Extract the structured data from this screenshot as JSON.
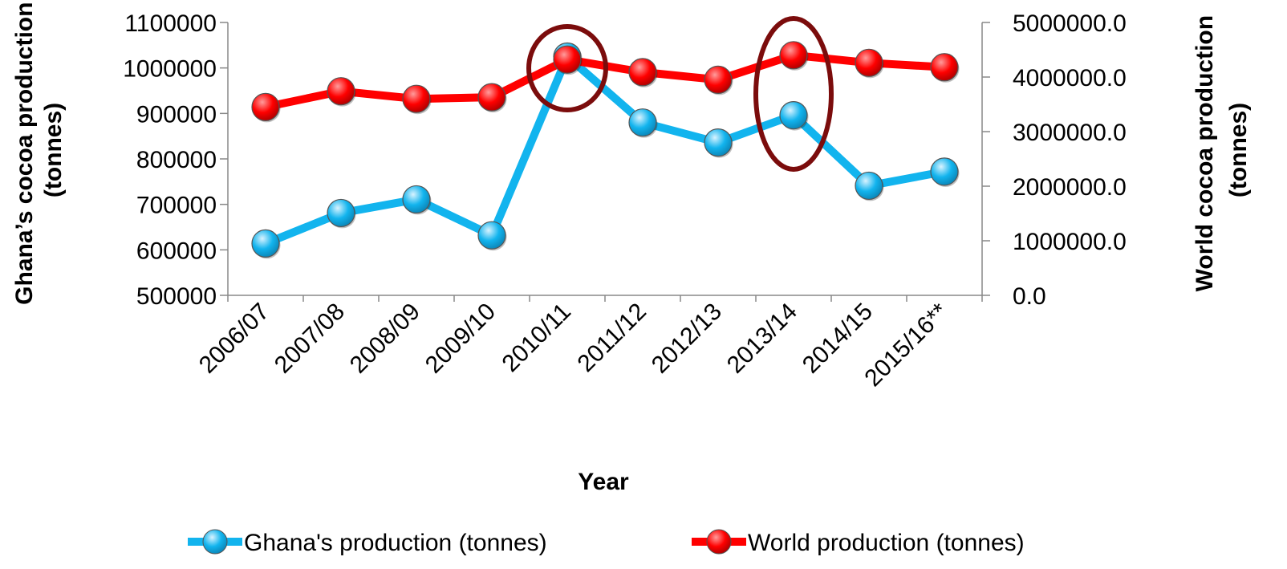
{
  "chart_data": {
    "type": "line",
    "categories": [
      "2006/07",
      "2007/08",
      "2008/09",
      "2009/10",
      "2010/11",
      "2011/12",
      "2012/13",
      "2013/14",
      "2014/15",
      "2015/16**"
    ],
    "series": [
      {
        "name": "Ghana's production (tonnes)",
        "axis": "left",
        "color": "#12B4EE",
        "values": [
          614000,
          681000,
          711000,
          632000,
          1025000,
          880000,
          836000,
          896000,
          741000,
          772000
        ]
      },
      {
        "name": "World production (tonnes)",
        "axis": "right",
        "color": "#FF0000",
        "values": [
          3450000,
          3740000,
          3600000,
          3630000,
          4320000,
          4090000,
          3950000,
          4400000,
          4260000,
          4180000
        ]
      }
    ],
    "xlabel": "Year",
    "ylabel_left": "Ghana’s cocoa production (tonnes)",
    "ylabel_left_lines": [
      "Ghana’s cocoa production",
      "(tonnes)"
    ],
    "ylabel_right": "World  cocoa production (tonnes)",
    "ylabel_right_lines": [
      "World  cocoa production",
      "(tonnes)"
    ],
    "ylim_left": [
      500000,
      1100000
    ],
    "yticks_left": [
      "500000",
      "600000",
      "700000",
      "800000",
      "900000",
      "1000000",
      "1100000"
    ],
    "ylim_right": [
      0,
      5000000
    ],
    "yticks_right": [
      "0.0",
      "1000000.0",
      "2000000.0",
      "3000000.0",
      "4000000.0",
      "5000000.0"
    ],
    "grid": false,
    "legend_position": "bottom",
    "annotations": [
      {
        "type": "circle",
        "category": "2010/11",
        "color": "#7B0C0C"
      },
      {
        "type": "ellipse",
        "category": "2013/14",
        "color": "#7B0C0C"
      }
    ]
  }
}
